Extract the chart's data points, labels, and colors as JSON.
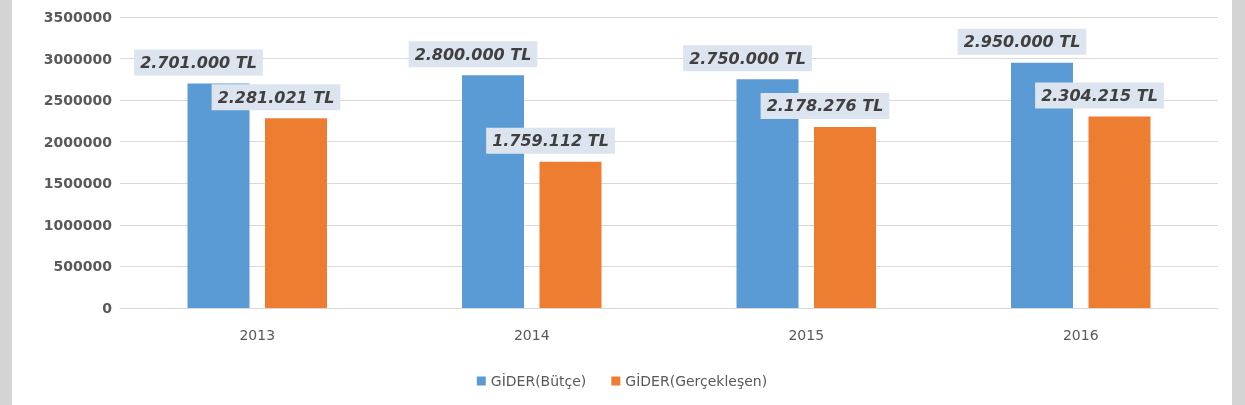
{
  "chart_data": {
    "type": "bar",
    "categories": [
      "2013",
      "2014",
      "2015",
      "2016"
    ],
    "series": [
      {
        "name": "GİDER(Bütçe)",
        "color": "#5b9bd5",
        "values": [
          2701000,
          2800000,
          2750000,
          2950000
        ],
        "value_labels": [
          "2.701.000 TL",
          "2.800.000 TL",
          "2.750.000 TL",
          "2.950.000 TL"
        ]
      },
      {
        "name": "GİDER(Gerçekleşen)",
        "color": "#ed7d31",
        "values": [
          2281021,
          1759112,
          2178276,
          2304215
        ],
        "value_labels": [
          "2.281.021 TL",
          "1.759.112 TL",
          "2.178.276 TL",
          "2.304.215 TL"
        ]
      }
    ],
    "ylim": [
      0,
      3500000
    ],
    "yticks": [
      0,
      500000,
      1000000,
      1500000,
      2000000,
      2500000,
      3000000,
      3500000
    ],
    "grid": "y",
    "legend": "bottom"
  }
}
